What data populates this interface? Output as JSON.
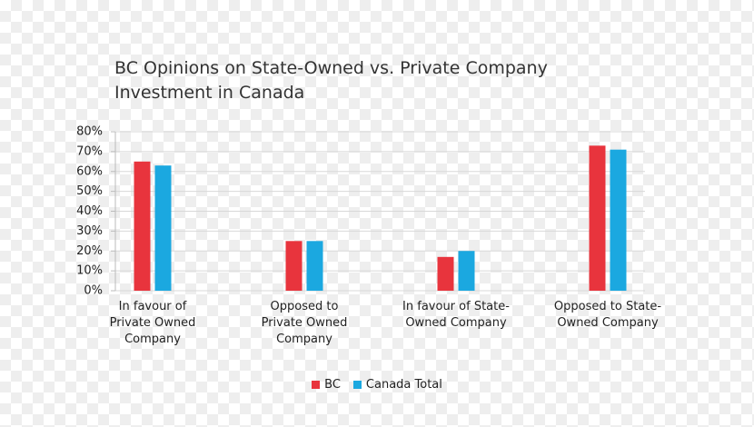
{
  "chart_data": {
    "type": "bar",
    "title": "BC Opinions on State-Owned vs. Private Company Investment in Canada",
    "categories": [
      "In favour of Private Owned Company",
      "Opposed to Private Owned Company",
      "In favour of State-Owned Company",
      "Opposed to State-Owned Company"
    ],
    "series": [
      {
        "name": "BC",
        "color": "#e8343d",
        "values": [
          65,
          25,
          17,
          73
        ]
      },
      {
        "name": "Canada Total",
        "color": "#1ba8e0",
        "values": [
          63,
          25,
          20,
          71
        ]
      }
    ],
    "ylim": [
      0,
      80
    ],
    "yticks": [
      {
        "value": 0,
        "label": "0%"
      },
      {
        "value": 10,
        "label": "10%"
      },
      {
        "value": 20,
        "label": "20%"
      },
      {
        "value": 30,
        "label": "30%"
      },
      {
        "value": 40,
        "label": "40%"
      },
      {
        "value": 50,
        "label": "50%"
      },
      {
        "value": 60,
        "label": "60%"
      },
      {
        "value": 70,
        "label": "70%"
      },
      {
        "value": 80,
        "label": "80%"
      }
    ],
    "grid": true,
    "legend": "bottom"
  }
}
